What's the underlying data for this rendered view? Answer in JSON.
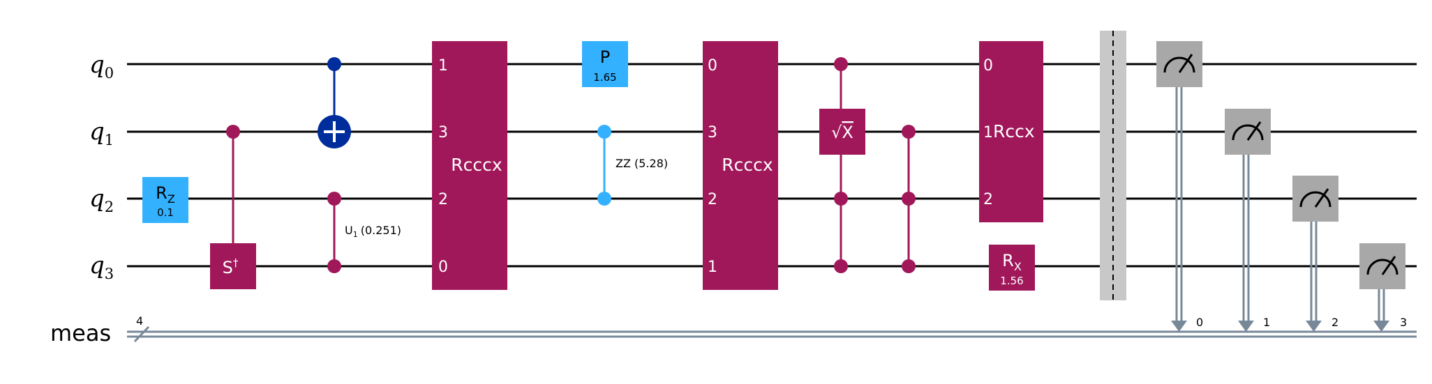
{
  "colors": {
    "background": "#ffffff",
    "wire": "#000000",
    "classical": "#778899",
    "magenta": "#a0185a",
    "light_blue": "#33b1ff",
    "dark_blue": "#002d9c",
    "measure_gray": "#a8a8a8",
    "barrier": "#c8c8c8"
  },
  "wires": {
    "qubits": [
      {
        "base": "q",
        "index": "0"
      },
      {
        "base": "q",
        "index": "1"
      },
      {
        "base": "q",
        "index": "2"
      },
      {
        "base": "q",
        "index": "3"
      }
    ],
    "classical": {
      "label": "meas",
      "bits": "4"
    }
  },
  "gates": {
    "rz": {
      "name": "R",
      "sub": "Z",
      "param": "0.1"
    },
    "sdg": {
      "name": "S",
      "sup": "†"
    },
    "u1_label": "U",
    "u1_sub": "1",
    "u1_param": "(0.251)",
    "rcccx_1": {
      "name": "Rcccx",
      "ports": [
        "1",
        "3",
        "2",
        "0"
      ]
    },
    "p": {
      "name": "P",
      "param": "1.65"
    },
    "zz_label": "ZZ (5.28)",
    "rcccx_2": {
      "name": "Rcccx",
      "ports": [
        "0",
        "3",
        "2",
        "1"
      ]
    },
    "sx": {
      "radical": "√",
      "name": "X"
    },
    "rccx": {
      "name": "Rccx",
      "ports": [
        "0",
        "1",
        "2"
      ]
    },
    "rx": {
      "name": "R",
      "sub": "X",
      "param": "1.56"
    }
  },
  "measurements": {
    "icon": "measure-gauge-icon",
    "targets": [
      "0",
      "1",
      "2",
      "3"
    ]
  }
}
